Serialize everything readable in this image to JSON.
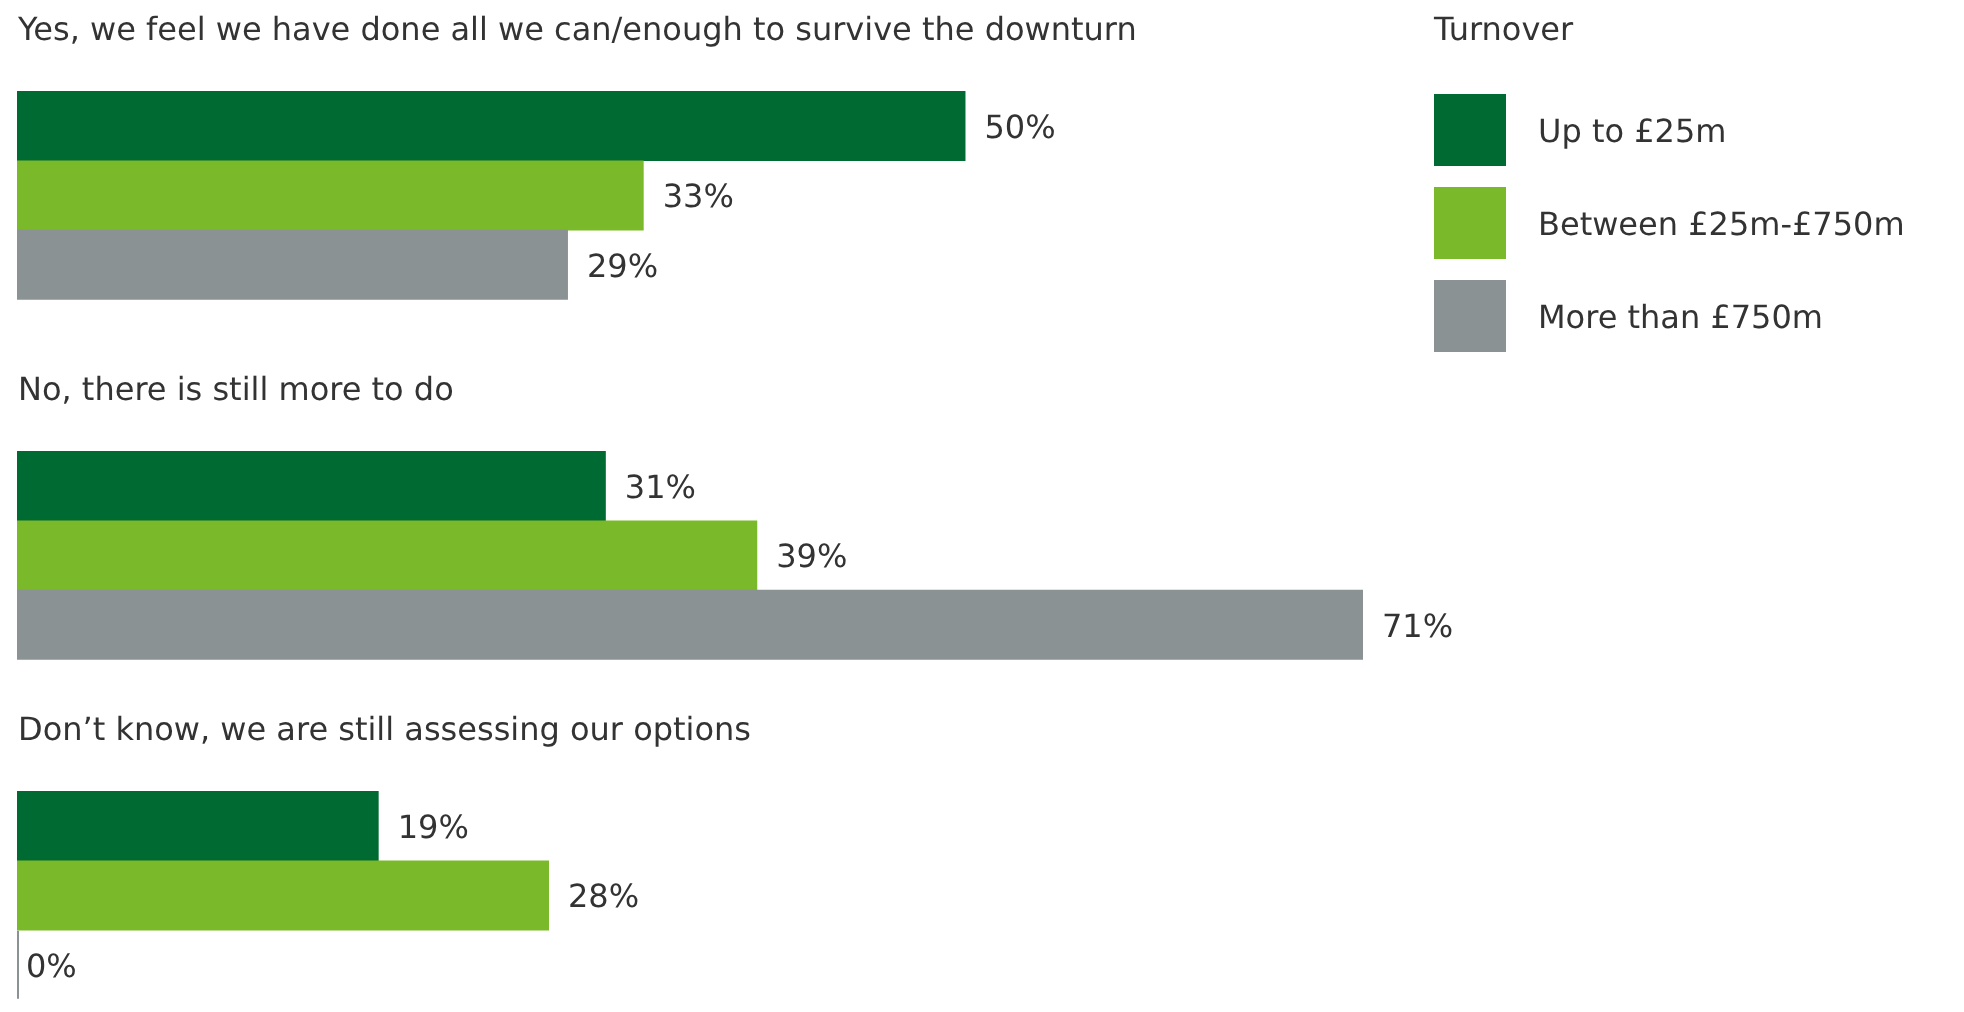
{
  "chart_data": {
    "type": "bar",
    "orientation": "horizontal",
    "categories": [
      "Yes, we feel we have done all we can/enough to survive the downturn",
      "No, there is still more to do",
      "Don’t know, we are still assessing our options"
    ],
    "series": [
      {
        "name": "Up to £25m",
        "color": "#006a33",
        "values": [
          50,
          31,
          19
        ],
        "value_labels": [
          "50%",
          "31%",
          "19%"
        ]
      },
      {
        "name": "Between £25m-£750m",
        "color": "#7ab929",
        "values": [
          33,
          39,
          28
        ],
        "value_labels": [
          "33%",
          "39%",
          "28%"
        ]
      },
      {
        "name": "More than £750m",
        "color": "#8b9294",
        "values": [
          29,
          71,
          0
        ],
        "value_labels": [
          "29%",
          "71%",
          "0%"
        ]
      }
    ],
    "legend_title": "Turnover",
    "legend": "top right"
  }
}
